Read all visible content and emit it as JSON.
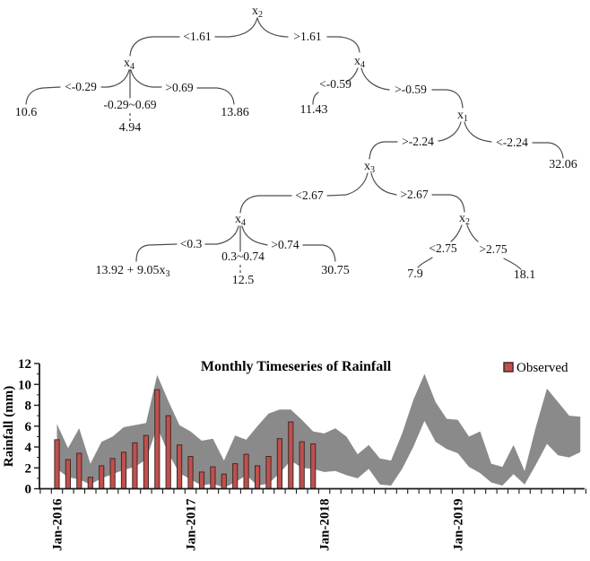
{
  "tree": {
    "nodes": {
      "root": {
        "base": "x",
        "sub": "2"
      },
      "left_x4": {
        "base": "x",
        "sub": "4"
      },
      "right_x4": {
        "base": "x",
        "sub": "4"
      },
      "x1": {
        "base": "x",
        "sub": "1"
      },
      "x3": {
        "base": "x",
        "sub": "3"
      },
      "bl_x4": {
        "base": "x",
        "sub": "4"
      },
      "br_x2": {
        "base": "x",
        "sub": "2"
      }
    },
    "edges": {
      "root_l": "<1.61",
      "root_r": ">1.61",
      "l_l": "<-0.29",
      "l_r": ">0.69",
      "l_mid": "-0.29~0.69",
      "r_l": "<-0.59",
      "r_r": ">-0.59",
      "x1_l": ">-2.24",
      "x1_r": "<-2.24",
      "x3_l": "<2.67",
      "x3_r": ">2.67",
      "bl_l": "<0.3",
      "bl_r": ">0.74",
      "bl_mid": "0.3~0.74",
      "br_l": "<2.75",
      "br_r": ">2.75"
    },
    "leaves": {
      "v_10_6": "10.6",
      "v_4_94": "4.94",
      "v_13_86": "13.86",
      "v_11_43": "11.43",
      "v_32_06": "32.06",
      "v_eq": {
        "base": "13.92 + 9.05x",
        "sub": "3"
      },
      "v_12_5": "12.5",
      "v_30_75": "30.75",
      "v_7_9": "7.9",
      "v_18_1": "18.1"
    }
  },
  "chart_data": {
    "type": "combo",
    "title": "Monthly Timeseries of Rainfall",
    "ylabel": "Rainfall (mm)",
    "ylim": [
      0,
      12
    ],
    "yticks": [
      0,
      2,
      4,
      6,
      8,
      10,
      12
    ],
    "x_start": "Jan-2016",
    "x_end": "Dec-2019",
    "n_months": 48,
    "xtick_labels": [
      "Jan-2016",
      "Jan-2017",
      "Jan-2018",
      "Jan-2019"
    ],
    "xtick_positions": [
      0,
      12,
      24,
      36
    ],
    "legend": [
      {
        "label": "Observed",
        "color": "#C0504D"
      }
    ],
    "series": [
      {
        "name": "Observed",
        "type": "bar",
        "color": "#C0504D",
        "border_color": "#432826",
        "values": [
          4.7,
          2.8,
          3.4,
          1.1,
          2.2,
          2.9,
          3.5,
          4.4,
          5.1,
          9.5,
          7.0,
          4.2,
          3.1,
          1.6,
          2.1,
          1.4,
          2.4,
          3.3,
          2.2,
          3.1,
          4.8,
          6.4,
          4.5,
          4.3
        ]
      },
      {
        "name": "Prediction band",
        "type": "band",
        "color": "#8A8A8A",
        "upper": [
          6.2,
          3.9,
          5.8,
          2.4,
          4.5,
          5.0,
          5.9,
          6.1,
          6.3,
          10.9,
          8.4,
          6.1,
          5.5,
          4.6,
          4.8,
          2.7,
          5.1,
          4.7,
          6.0,
          7.2,
          7.6,
          7.6,
          6.6,
          5.5,
          5.3,
          5.8,
          5.0,
          3.3,
          4.2,
          2.9,
          2.7,
          5.3,
          8.5,
          11.0,
          8.3,
          6.7,
          6.6,
          5.0,
          5.5,
          2.4,
          2.1,
          4.2,
          1.7,
          5.9,
          9.6,
          8.3,
          7.0,
          6.9
        ],
        "lower": [
          1.9,
          1.1,
          0.9,
          0.4,
          1.0,
          1.4,
          1.8,
          2.1,
          2.8,
          5.9,
          3.4,
          1.5,
          0.9,
          0.3,
          0.5,
          0.1,
          0.6,
          1.3,
          0.3,
          0.5,
          1.5,
          2.7,
          2.0,
          1.9,
          1.6,
          1.7,
          1.3,
          1.0,
          1.9,
          0.4,
          0.3,
          1.9,
          4.0,
          6.5,
          4.5,
          3.8,
          3.4,
          2.1,
          1.5,
          0.6,
          0.3,
          1.4,
          0.4,
          2.3,
          4.3,
          3.2,
          3.0,
          3.5
        ]
      }
    ]
  }
}
